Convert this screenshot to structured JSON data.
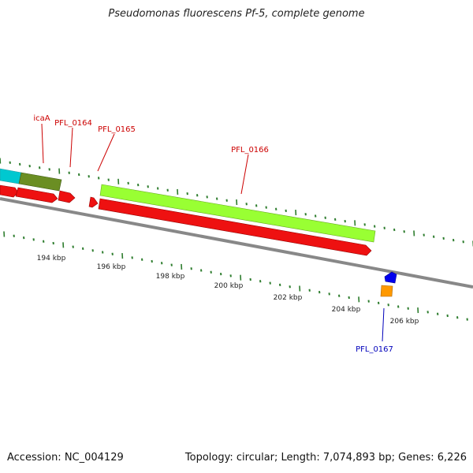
{
  "title": "Pseudomonas fluorescens Pf-5, complete genome",
  "footer": {
    "accession": "Accession: NC_004129",
    "summary": "Topology: circular; Length: 7,074,893 bp; Genes: 6,226"
  },
  "colors": {
    "backbone": "#888888",
    "tick": "#2e7d2e",
    "gene_red": "#ee1111",
    "label_red": "#cc0000",
    "label_blue": "#0000bb",
    "icaA_fill": "#6b8e23",
    "cyan_fill": "#00c8d0",
    "lime_fill": "#99ff33",
    "blue_fill": "#0000ee",
    "orange_fill": "#ff9900"
  },
  "scale_labels": [
    "194 kbp",
    "196 kbp",
    "198 kbp",
    "200 kbp",
    "202 kbp",
    "204 kbp",
    "206 kbp"
  ],
  "gene_labels": [
    {
      "name": "icaA",
      "color": "red"
    },
    {
      "name": "PFL_0164",
      "color": "red"
    },
    {
      "name": "PFL_0165",
      "color": "red"
    },
    {
      "name": "PFL_0166",
      "color": "red"
    },
    {
      "name": "PFL_0167",
      "color": "blue"
    }
  ]
}
